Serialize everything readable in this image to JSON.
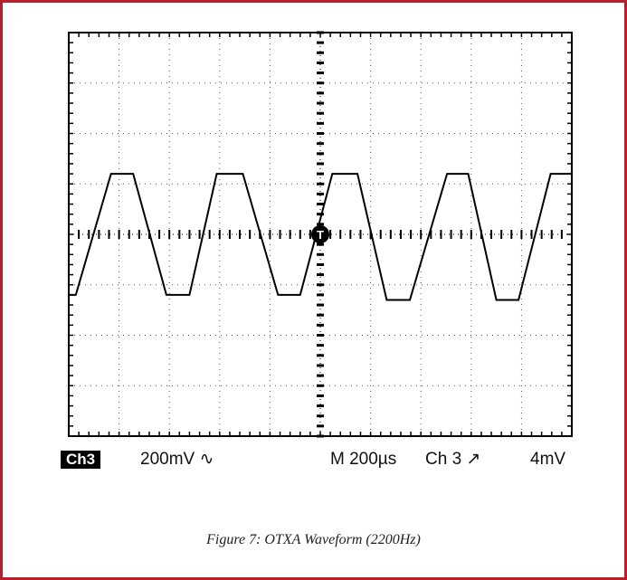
{
  "colors": {
    "border": "#b81f2b",
    "grid": "#000000",
    "trace": "#000000"
  },
  "readouts": {
    "channel": "Ch3",
    "volts_per_div": "200mV",
    "coupling_symbol": "∿",
    "timebase": "M 200µs",
    "trigger_source": "Ch 3",
    "trigger_slope_symbol": "↗",
    "trigger_level": "4mV"
  },
  "caption": "Figure 7:  OTXA Waveform (2200Hz)",
  "chart_data": {
    "type": "line",
    "title": "",
    "xlabel": "",
    "ylabel": "",
    "x_divisions": 10,
    "y_divisions": 8,
    "grid": true,
    "trigger_marker": "T",
    "xlim": [
      0,
      10
    ],
    "ylim": [
      -4,
      4
    ],
    "series": [
      {
        "x": [
          0,
          0.14,
          0.84,
          1.28,
          1.94,
          2.4,
          2.94,
          3.46,
          4.16,
          4.6,
          5.24,
          5.74,
          6.32,
          6.78,
          7.52,
          7.94,
          8.5,
          8.94,
          9.58,
          10
        ],
        "y": [
          -1.2,
          -1.2,
          1.2,
          1.2,
          -1.2,
          -1.2,
          1.2,
          1.2,
          -1.2,
          -1.2,
          1.2,
          1.2,
          -1.3,
          -1.3,
          1.2,
          1.2,
          -1.3,
          -1.3,
          1.2,
          1.2
        ]
      }
    ]
  }
}
